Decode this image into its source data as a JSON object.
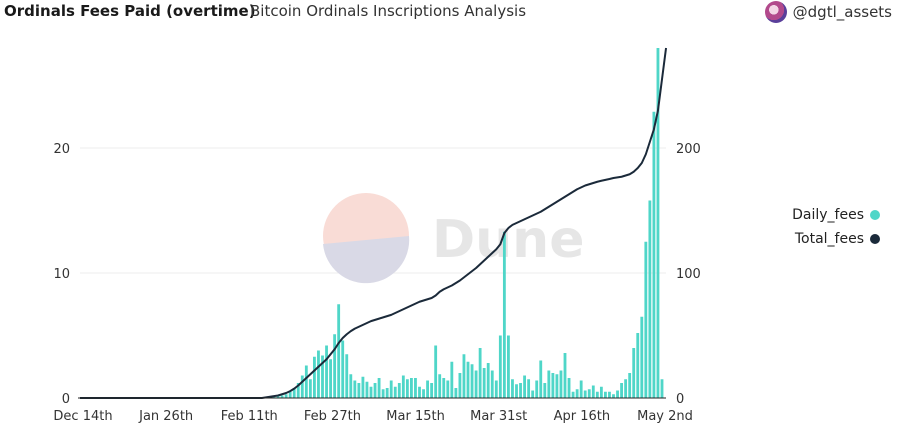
{
  "header": {
    "title": "Ordinals Fees Paid (overtime)",
    "subtitle": "Bitcoin Ordinals Inscriptions Analysis",
    "author": "@dgtl_assets"
  },
  "watermark": {
    "text": "Dune"
  },
  "colors": {
    "daily": "#4fd6c8",
    "total": "#1b2a3a",
    "grid": "#ececec"
  },
  "chart_data": {
    "type": "bar",
    "x_start": "2022-12-14",
    "x_ticks": [
      "Dec 14th",
      "Jan 26th",
      "Feb 11th",
      "Feb 27th",
      "Mar 15th",
      "Mar 31st",
      "Apr 16th",
      "May 2nd"
    ],
    "y_left": {
      "range": [
        0,
        30
      ],
      "ticks": [
        0,
        10,
        20
      ]
    },
    "y_right": {
      "range": [
        0,
        300
      ],
      "ticks": [
        0,
        100,
        200
      ]
    },
    "grid": true,
    "legend_position": "right",
    "series": [
      {
        "name": "Daily_fees",
        "axis": "left",
        "render": "bar",
        "values": [
          0,
          0,
          0,
          0,
          0,
          0,
          0,
          0,
          0,
          0,
          0,
          0,
          0,
          0,
          0,
          0,
          0,
          0,
          0,
          0,
          0,
          0,
          0,
          0,
          0,
          0,
          0,
          0,
          0,
          0,
          0,
          0,
          0,
          0,
          0,
          0,
          0,
          0,
          0,
          0,
          0,
          0,
          0,
          0,
          0,
          0,
          0.05,
          0.05,
          0.1,
          0.15,
          0.2,
          0.3,
          0.5,
          0.8,
          1.2,
          1.8,
          2.6,
          1.5,
          3.3,
          3.8,
          3.4,
          4.2,
          3.1,
          5.1,
          7.5,
          4.6,
          3.5,
          1.9,
          1.4,
          1.2,
          1.7,
          1.3,
          0.9,
          1.2,
          1.6,
          0.7,
          0.8,
          1.4,
          0.9,
          1.2,
          1.8,
          1.5,
          1.6,
          1.6,
          0.9,
          0.7,
          1.4,
          1.2,
          4.2,
          1.9,
          1.6,
          1.4,
          2.9,
          0.8,
          2.0,
          3.5,
          2.9,
          2.7,
          2.2,
          4.0,
          2.4,
          2.8,
          2.2,
          1.4,
          5.0,
          13.3,
          5.0,
          1.5,
          1.1,
          1.2,
          1.8,
          1.5,
          0.6,
          1.4,
          3.0,
          1.2,
          2.2,
          2.0,
          1.9,
          2.2,
          3.6,
          1.6,
          0.5,
          0.7,
          1.4,
          0.6,
          0.7,
          1.0,
          0.5,
          0.9,
          0.5,
          0.5,
          0.3,
          0.6,
          1.2,
          1.5,
          2.0,
          4.0,
          5.2,
          6.5,
          12.5,
          15.8,
          22.9,
          28.0,
          1.5
        ]
      },
      {
        "name": "Total_fees",
        "axis": "right",
        "render": "line",
        "values": [
          0,
          0,
          0,
          0,
          0,
          0,
          0,
          0,
          0,
          0,
          0,
          0,
          0,
          0,
          0,
          0,
          0,
          0,
          0,
          0,
          0,
          0,
          0,
          0,
          0,
          0,
          0,
          0,
          0,
          0,
          0,
          0,
          0,
          0,
          0,
          0,
          0,
          0,
          0,
          0,
          0,
          0,
          0,
          0,
          0,
          0,
          0.5,
          1,
          1.5,
          2,
          3,
          4,
          5.5,
          7.5,
          10,
          13,
          16,
          19,
          22,
          25,
          28,
          31,
          35,
          39,
          44,
          48,
          51,
          53.5,
          55.5,
          57,
          58.5,
          60,
          61.5,
          62.5,
          63.5,
          64.5,
          65.5,
          66.5,
          68,
          69.5,
          71,
          72.5,
          74,
          75.5,
          77,
          78,
          79,
          80,
          82,
          85,
          87,
          88.5,
          90,
          92,
          94,
          96.5,
          99,
          101.5,
          104,
          107,
          110,
          113,
          116,
          119,
          123,
          132,
          136,
          138.5,
          140,
          141.5,
          143,
          144.5,
          146,
          147.5,
          149,
          151,
          153,
          155,
          157,
          159,
          161,
          163,
          165,
          167,
          168.5,
          170,
          171,
          172,
          173,
          173.8,
          174.5,
          175.2,
          176,
          176.5,
          177,
          178,
          179,
          181,
          184,
          188,
          195,
          205,
          215,
          230,
          255,
          280
        ]
      }
    ]
  }
}
